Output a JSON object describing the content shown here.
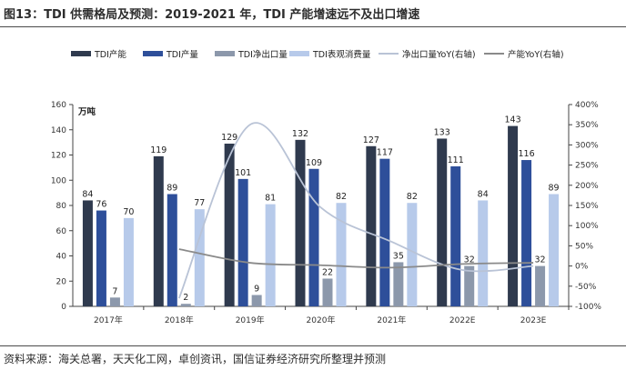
{
  "figure": {
    "title": "图13：TDI 供需格局及预测：2019-2021 年，TDI 产能增速远不及出口增速",
    "source": "资料来源：海关总署，天天化工网，卓创资讯，国信证券经济研究所整理并预测"
  },
  "chart_data": {
    "type": "bar",
    "categories": [
      "2017年",
      "2018年",
      "2019年",
      "2020年",
      "2021年",
      "2022E",
      "2023E"
    ],
    "unit_label": "万吨",
    "left_axis": {
      "ylim": [
        0,
        160
      ],
      "ticks": [
        0,
        20,
        40,
        60,
        80,
        100,
        120,
        140,
        160
      ]
    },
    "right_axis": {
      "ylim": [
        -100,
        400
      ],
      "ticks": [
        "-100%",
        "-50%",
        "0%",
        "50%",
        "100%",
        "150%",
        "200%",
        "250%",
        "300%",
        "350%",
        "400%"
      ]
    },
    "series": [
      {
        "name": "TDI产能",
        "kind": "bar",
        "color": "#2f3a4e",
        "values": [
          84,
          119,
          129,
          132,
          127,
          133,
          143
        ]
      },
      {
        "name": "TDI产量",
        "kind": "bar",
        "color": "#2e4f9a",
        "values": [
          76,
          89,
          101,
          109,
          117,
          111,
          116
        ]
      },
      {
        "name": "TDI净出口量",
        "kind": "bar",
        "color": "#8c98ab",
        "values": [
          7,
          2,
          9,
          22,
          35,
          32,
          32
        ]
      },
      {
        "name": "TDI表观消费量",
        "kind": "bar",
        "color": "#b7caea",
        "values": [
          70,
          77,
          81,
          82,
          82,
          84,
          89
        ]
      },
      {
        "name": "净出口量YoY(右轴)",
        "kind": "line",
        "color": "#b9c3d6",
        "values": [
          null,
          -80,
          350,
          145,
          60,
          -10,
          0
        ]
      },
      {
        "name": "产能YoY(右轴)",
        "kind": "line",
        "color": "#8a8a8a",
        "values": [
          null,
          42,
          8,
          2,
          -4,
          5,
          8
        ]
      }
    ]
  }
}
